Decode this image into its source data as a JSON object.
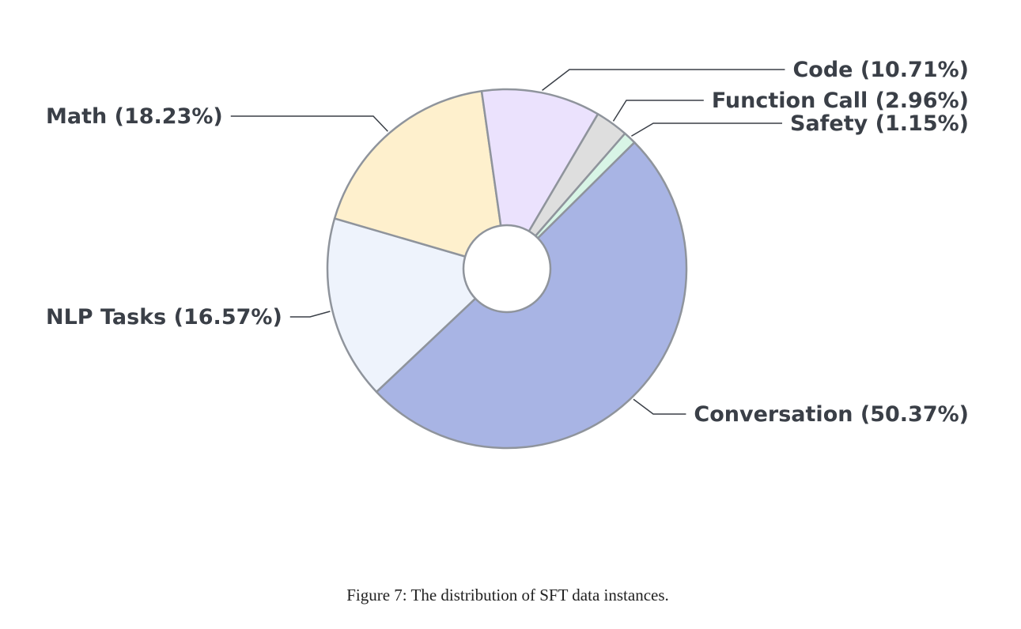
{
  "chart_data": {
    "type": "pie",
    "donut": true,
    "title": "",
    "legend": "none",
    "start_angle_deg": 45.25,
    "direction": "clockwise",
    "slices": [
      {
        "label": "Conversation (50.37%)",
        "name": "Conversation",
        "value": 50.37,
        "color": "#a8b4e4"
      },
      {
        "label": "NLP Tasks (16.57%)",
        "name": "NLP Tasks",
        "value": 16.57,
        "color": "#eef3fc"
      },
      {
        "label": "Math (18.23%)",
        "name": "Math",
        "value": 18.23,
        "color": "#fef0cd"
      },
      {
        "label": "Code (10.71%)",
        "name": "Code",
        "value": 10.71,
        "color": "#ebe2fd"
      },
      {
        "label": "Function Call (2.96%)",
        "name": "Function Call",
        "value": 2.96,
        "color": "#dedede"
      },
      {
        "label": "Safety (1.15%)",
        "name": "Safety",
        "value": 1.15,
        "color": "#d8f5e6"
      }
    ]
  },
  "caption": "Figure 7: The distribution of SFT data instances."
}
